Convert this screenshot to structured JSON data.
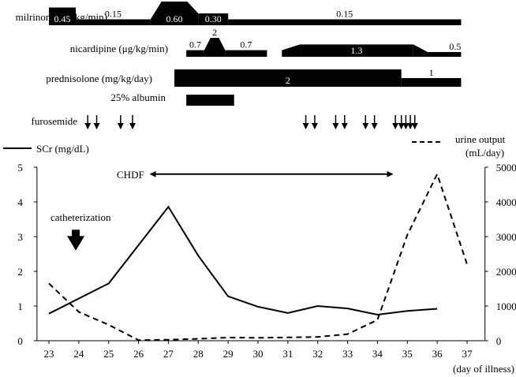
{
  "chart_data": {
    "type": "line",
    "x": [
      23,
      24,
      25,
      26,
      27,
      28,
      29,
      30,
      31,
      32,
      33,
      34,
      35,
      36,
      37
    ],
    "xlabel": "(day of illness)",
    "x_ticks": [
      "23",
      "24",
      "25",
      "26",
      "27",
      "28",
      "29",
      "30",
      "31",
      "32",
      "33",
      "34",
      "35",
      "36",
      "37"
    ],
    "xlim": [
      22.6,
      37.6
    ],
    "y_left": {
      "label": "SCr (mg/dL)",
      "ylim": [
        0,
        5
      ],
      "ticks": [
        "0",
        "1",
        "2",
        "3",
        "4",
        "5"
      ]
    },
    "y_right": {
      "label_line1": "urine output",
      "label_line2": "(mL/day)",
      "ylim": [
        0,
        5000
      ],
      "ticks": [
        "0",
        "1000",
        "2000",
        "3000",
        "4000",
        "5000"
      ]
    },
    "series": [
      {
        "name": "SCr (mg/dL)",
        "axis": "left",
        "style": "solid",
        "points": [
          [
            23,
            0.78
          ],
          [
            25,
            1.65
          ],
          [
            27,
            3.86
          ],
          [
            28,
            2.45
          ],
          [
            29,
            1.28
          ],
          [
            30,
            0.98
          ],
          [
            31,
            0.8
          ],
          [
            32,
            1.0
          ],
          [
            33,
            0.93
          ],
          [
            34,
            0.75
          ],
          [
            35,
            0.86
          ],
          [
            36,
            0.92
          ]
        ]
      },
      {
        "name": "urine output (mL/day)",
        "axis": "right",
        "style": "dashed",
        "points": [
          [
            23,
            1650
          ],
          [
            24,
            830
          ],
          [
            25,
            460
          ],
          [
            26,
            15
          ],
          [
            27,
            30
          ],
          [
            28,
            55
          ],
          [
            29,
            90
          ],
          [
            30,
            85
          ],
          [
            31,
            95
          ],
          [
            32,
            110
          ],
          [
            33,
            190
          ],
          [
            34,
            600
          ],
          [
            35,
            3050
          ],
          [
            36,
            4800
          ],
          [
            37,
            2200
          ]
        ]
      }
    ],
    "annotations": {
      "chdf": {
        "label": "CHDF",
        "from": 26.4,
        "to": 34.5,
        "y": 4.8
      },
      "catheterization": {
        "label": "catheterization",
        "day": 23.9,
        "arrow_top": 3.2,
        "arrow_bottom": 2.6
      }
    },
    "drugs": [
      {
        "label": "milrinone (μg/kg/min)",
        "segments": [
          {
            "from": 23.0,
            "to": 23.9,
            "value": "0.45",
            "height": 0.45
          },
          {
            "from": 23.9,
            "to": 26.4,
            "value": "0.15",
            "height": 0.15
          },
          {
            "from": 26.4,
            "to": 28.0,
            "value": "0.60",
            "height": 0.6
          },
          {
            "from": 28.0,
            "to": 29.0,
            "value": "0.30",
            "height": 0.3
          },
          {
            "from": 29.0,
            "to": 36.8,
            "value": "0.15",
            "height": 0.15
          }
        ]
      },
      {
        "label": "nicardipine (μg/kg/min)",
        "segments": [
          {
            "from": 27.6,
            "to": 28.2,
            "value": "0.7",
            "height": 0.7
          },
          {
            "from": 28.2,
            "to": 28.9,
            "value": "2",
            "height": 2
          },
          {
            "from": 28.9,
            "to": 30.3,
            "value": "0.7",
            "height": 0.7
          },
          {
            "from": 30.8,
            "to": 31.4,
            "value": "",
            "height": 0.7
          },
          {
            "from": 31.4,
            "to": 35.2,
            "value": "1.3",
            "height": 1.3
          },
          {
            "from": 35.2,
            "to": 36.8,
            "value": "0.5",
            "height": 0.5
          }
        ]
      },
      {
        "label": "prednisolone (mg/kg/day)",
        "segments": [
          {
            "from": 27.2,
            "to": 34.8,
            "value": "2",
            "height": 2
          },
          {
            "from": 34.8,
            "to": 36.8,
            "value": "1",
            "height": 1
          }
        ]
      },
      {
        "label": "25% albumin",
        "segments": [
          {
            "from": 27.6,
            "to": 29.2,
            "value": "",
            "height": 1
          }
        ]
      }
    ],
    "furosemide": {
      "label": "furosemide",
      "days": [
        24.3,
        24.6,
        25.4,
        25.8,
        31.6,
        31.9,
        32.6,
        32.9,
        33.6,
        33.9,
        34.6,
        34.8,
        34.95,
        35.1,
        35.25
      ]
    },
    "legend": {
      "placement": "top"
    }
  }
}
